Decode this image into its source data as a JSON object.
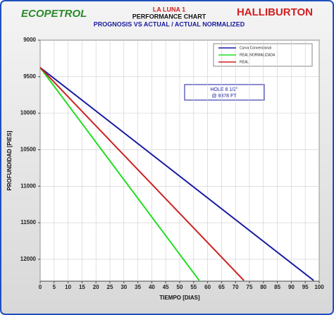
{
  "chart_data": {
    "type": "line",
    "logos": [
      "ECOPETROL",
      "HALLIBURTON"
    ],
    "title": "LA LUNA 1",
    "subtitle": [
      "PERFORMANCE CHART",
      "PROGNOSIS VS ACTUAL / ACTUAL NORMALIZED"
    ],
    "xlabel": "TIEMPO [DIAS]",
    "ylabel": "PROFUNDIDAD [PIES]",
    "xlim": [
      0,
      100
    ],
    "xticks": [
      0,
      5,
      10,
      15,
      20,
      25,
      30,
      35,
      40,
      45,
      50,
      55,
      60,
      65,
      70,
      75,
      80,
      85,
      90,
      95,
      100
    ],
    "ylim": [
      9000,
      12300
    ],
    "y_inverted": true,
    "yticks": [
      9000,
      9500,
      10000,
      10500,
      11000,
      11500,
      12000
    ],
    "grid": true,
    "legend": "top-right",
    "annotation": [
      "HOLE 8 1/2\"",
      "@ 9378 FT"
    ],
    "series": [
      {
        "name": "Curva Convencional",
        "color": "#1a1aa0",
        "x": [
          0,
          98
        ],
        "values": [
          9375,
          12290
        ]
      },
      {
        "name": "REAL NORMALIZADA",
        "color": "#22dd22",
        "x": [
          0,
          57
        ],
        "values": [
          9375,
          12290
        ]
      },
      {
        "name": "REAL",
        "color": "#cc2222",
        "x": [
          0,
          73
        ],
        "values": [
          9375,
          12290
        ]
      }
    ]
  }
}
